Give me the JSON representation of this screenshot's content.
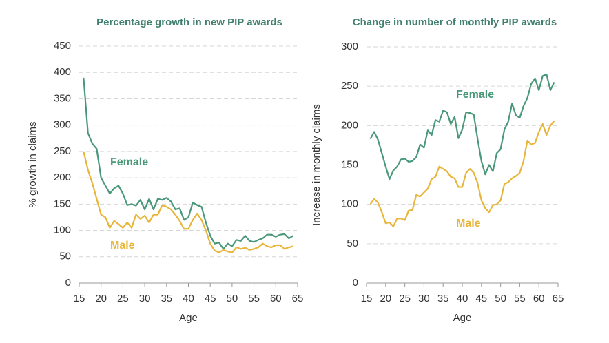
{
  "chart_data": [
    {
      "type": "line",
      "title": "Percentage growth in new PIP awards",
      "x_label": "Age",
      "y_label": "% growth in claims",
      "x": [
        16,
        17,
        18,
        19,
        20,
        21,
        22,
        23,
        24,
        25,
        26,
        27,
        28,
        29,
        30,
        31,
        32,
        33,
        34,
        35,
        36,
        37,
        38,
        39,
        40,
        41,
        42,
        43,
        44,
        45,
        46,
        47,
        48,
        49,
        50,
        51,
        52,
        53,
        54,
        55,
        56,
        57,
        58,
        59,
        60,
        61,
        62,
        63,
        64
      ],
      "series": [
        {
          "name": "Female",
          "color": "#4a987a",
          "values": [
            390,
            285,
            265,
            255,
            200,
            185,
            170,
            180,
            185,
            170,
            148,
            150,
            147,
            158,
            140,
            160,
            140,
            160,
            158,
            162,
            155,
            140,
            142,
            120,
            125,
            153,
            148,
            145,
            115,
            90,
            75,
            77,
            65,
            75,
            70,
            82,
            80,
            90,
            80,
            78,
            82,
            85,
            92,
            92,
            88,
            92,
            93,
            85,
            90
          ]
        },
        {
          "name": "Male",
          "color": "#e8b53a",
          "values": [
            250,
            215,
            190,
            160,
            130,
            125,
            105,
            118,
            112,
            105,
            115,
            105,
            130,
            122,
            128,
            115,
            130,
            130,
            148,
            145,
            140,
            130,
            118,
            103,
            103,
            120,
            132,
            120,
            100,
            75,
            62,
            58,
            63,
            60,
            58,
            68,
            65,
            67,
            63,
            65,
            68,
            75,
            70,
            68,
            72,
            72,
            65,
            68,
            70
          ]
        }
      ],
      "xlim": [
        15,
        65
      ],
      "xticks": [
        15,
        20,
        25,
        30,
        35,
        40,
        45,
        50,
        55,
        60,
        65
      ],
      "ylim": [
        0,
        450
      ],
      "yticks": [
        0,
        50,
        100,
        150,
        200,
        250,
        300,
        350,
        400,
        450
      ],
      "grid": true
    },
    {
      "type": "line",
      "title": "Change in number of monthly PIP awards",
      "x_label": "Age",
      "y_label": "Increase in monthly claims",
      "x": [
        16,
        17,
        18,
        19,
        20,
        21,
        22,
        23,
        24,
        25,
        26,
        27,
        28,
        29,
        30,
        31,
        32,
        33,
        34,
        35,
        36,
        37,
        38,
        39,
        40,
        41,
        42,
        43,
        44,
        45,
        46,
        47,
        48,
        49,
        50,
        51,
        52,
        53,
        54,
        55,
        56,
        57,
        58,
        59,
        60,
        61,
        62,
        63,
        64
      ],
      "series": [
        {
          "name": "Female",
          "color": "#4a987a",
          "values": [
            183,
            192,
            182,
            165,
            148,
            132,
            143,
            148,
            157,
            158,
            154,
            155,
            160,
            176,
            172,
            194,
            188,
            207,
            205,
            219,
            217,
            202,
            211,
            184,
            195,
            217,
            216,
            214,
            183,
            155,
            138,
            150,
            142,
            165,
            170,
            195,
            205,
            228,
            213,
            210,
            225,
            235,
            253,
            260,
            245,
            263,
            265,
            245,
            255
          ]
        },
        {
          "name": "Male",
          "color": "#e8b53a",
          "values": [
            100,
            107,
            102,
            90,
            76,
            77,
            72,
            82,
            82,
            80,
            92,
            93,
            112,
            110,
            115,
            120,
            132,
            135,
            148,
            145,
            142,
            135,
            133,
            122,
            122,
            140,
            145,
            140,
            127,
            105,
            95,
            90,
            99,
            100,
            105,
            126,
            128,
            133,
            136,
            140,
            155,
            181,
            176,
            178,
            192,
            202,
            188,
            200,
            206
          ]
        }
      ],
      "xlim": [
        15,
        65
      ],
      "xticks": [
        15,
        20,
        25,
        30,
        35,
        40,
        45,
        50,
        55,
        60,
        65
      ],
      "ylim": [
        0,
        300
      ],
      "yticks": [
        0,
        50,
        100,
        150,
        200,
        250,
        300
      ],
      "grid": true
    }
  ]
}
